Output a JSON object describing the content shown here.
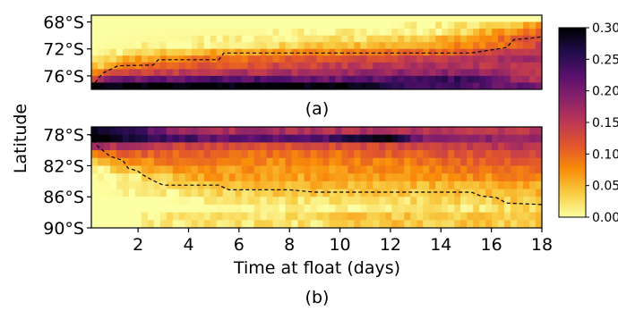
{
  "figure": {
    "ylabel": "Latitude",
    "xlabel": "Time at float (days)",
    "panel_a_label": "(a)",
    "panel_b_label": "(b)"
  },
  "colormap": {
    "name": "inferno_r",
    "stops": [
      "#fcffa4",
      "#f8cd44",
      "#f98e09",
      "#e3572b",
      "#bc3754",
      "#89226a",
      "#57106e",
      "#1f0c48",
      "#000004"
    ]
  },
  "chart_data": [
    {
      "type": "heatmap",
      "panel": "(a)",
      "x": {
        "ticks": [],
        "range": [
          0,
          18
        ]
      },
      "y": {
        "ticks": [
          "68°S",
          "72°S",
          "76°S"
        ],
        "range_degS": [
          67,
          78
        ]
      },
      "colorbar": {
        "range": [
          0.0,
          0.3
        ],
        "ticks": [
          "0.00",
          "0.05",
          "0.10",
          "0.15",
          "0.20",
          "0.25",
          "0.30"
        ]
      },
      "rows": [
        {
          "lat_degS": 67.5,
          "profile": [
            [
              0,
              0.0
            ],
            [
              18,
              0.0
            ]
          ]
        },
        {
          "lat_degS": 68.5,
          "profile": [
            [
              0,
              0.0
            ],
            [
              12,
              0.0
            ],
            [
              16,
              0.03
            ],
            [
              18,
              0.07
            ]
          ]
        },
        {
          "lat_degS": 69.5,
          "profile": [
            [
              0,
              0.0
            ],
            [
              14,
              0.01
            ],
            [
              16,
              0.06
            ],
            [
              18,
              0.1
            ]
          ]
        },
        {
          "lat_degS": 70.5,
          "profile": [
            [
              0,
              0.0
            ],
            [
              8,
              0.01
            ],
            [
              12,
              0.03
            ],
            [
              15,
              0.06
            ],
            [
              18,
              0.13
            ]
          ]
        },
        {
          "lat_degS": 71.5,
          "profile": [
            [
              0,
              0.0
            ],
            [
              4,
              0.01
            ],
            [
              8,
              0.03
            ],
            [
              12,
              0.05
            ],
            [
              16,
              0.09
            ],
            [
              18,
              0.14
            ]
          ]
        },
        {
          "lat_degS": 72.5,
          "profile": [
            [
              0,
              0.0
            ],
            [
              2,
              0.02
            ],
            [
              5,
              0.06
            ],
            [
              10,
              0.08
            ],
            [
              14,
              0.1
            ],
            [
              18,
              0.16
            ]
          ]
        },
        {
          "lat_degS": 73.5,
          "profile": [
            [
              0,
              0.01
            ],
            [
              1,
              0.04
            ],
            [
              3,
              0.08
            ],
            [
              8,
              0.11
            ],
            [
              13,
              0.14
            ],
            [
              18,
              0.17
            ]
          ]
        },
        {
          "lat_degS": 74.5,
          "profile": [
            [
              0,
              0.02
            ],
            [
              1,
              0.07
            ],
            [
              3,
              0.11
            ],
            [
              8,
              0.13
            ],
            [
              13,
              0.16
            ],
            [
              18,
              0.15
            ]
          ]
        },
        {
          "lat_degS": 75.5,
          "profile": [
            [
              0,
              0.05
            ],
            [
              1,
              0.12
            ],
            [
              4,
              0.15
            ],
            [
              10,
              0.17
            ],
            [
              15,
              0.19
            ],
            [
              18,
              0.14
            ]
          ]
        },
        {
          "lat_degS": 76.5,
          "profile": [
            [
              0,
              0.12
            ],
            [
              1,
              0.2
            ],
            [
              5,
              0.23
            ],
            [
              10,
              0.21
            ],
            [
              15,
              0.25
            ],
            [
              18,
              0.14
            ]
          ]
        },
        {
          "lat_degS": 77.5,
          "profile": [
            [
              0,
              0.3
            ],
            [
              10,
              0.3
            ],
            [
              11,
              0.27
            ],
            [
              14,
              0.24
            ],
            [
              18,
              0.2
            ]
          ]
        }
      ],
      "dashed_line": {
        "days": [
          0.3,
          0.6,
          1.2,
          2.6,
          2.8,
          5.2,
          5.4,
          9.0,
          15.2,
          16.6,
          16.9,
          17.6,
          18.0
        ],
        "lat_degS": [
          77.0,
          75.6,
          74.5,
          74.4,
          73.6,
          73.6,
          72.6,
          72.6,
          72.6,
          71.8,
          70.6,
          70.4,
          70.2
        ]
      }
    },
    {
      "type": "heatmap",
      "panel": "(b)",
      "x": {
        "ticks": [
          "2",
          "4",
          "6",
          "8",
          "10",
          "12",
          "14",
          "16",
          "18"
        ],
        "range": [
          0,
          18
        ]
      },
      "y": {
        "ticks": [
          "78°S",
          "82°S",
          "86°S",
          "90°S"
        ],
        "range_degS": [
          77,
          90
        ]
      },
      "colorbar": {
        "range": [
          0.0,
          0.3
        ],
        "ticks": [
          "0.00",
          "0.05",
          "0.10",
          "0.15",
          "0.20",
          "0.25",
          "0.30"
        ]
      },
      "rows": [
        {
          "lat_degS": 77.5,
          "profile": [
            [
              0,
              0.3
            ],
            [
              1,
              0.27
            ],
            [
              4,
              0.17
            ],
            [
              10,
              0.16
            ],
            [
              18,
              0.15
            ]
          ]
        },
        {
          "lat_degS": 78.5,
          "profile": [
            [
              0,
              0.3
            ],
            [
              1,
              0.3
            ],
            [
              2,
              0.26
            ],
            [
              5,
              0.22
            ],
            [
              9,
              0.22
            ],
            [
              12,
              0.3
            ],
            [
              13,
              0.2
            ],
            [
              18,
              0.17
            ]
          ]
        },
        {
          "lat_degS": 79.5,
          "profile": [
            [
              0,
              0.18
            ],
            [
              1,
              0.16
            ],
            [
              3,
              0.14
            ],
            [
              8,
              0.12
            ],
            [
              13,
              0.13
            ],
            [
              18,
              0.16
            ]
          ]
        },
        {
          "lat_degS": 80.5,
          "profile": [
            [
              0,
              0.06
            ],
            [
              1,
              0.1
            ],
            [
              3,
              0.11
            ],
            [
              8,
              0.09
            ],
            [
              13,
              0.11
            ],
            [
              18,
              0.14
            ]
          ]
        },
        {
          "lat_degS": 81.5,
          "profile": [
            [
              0,
              0.02
            ],
            [
              1,
              0.06
            ],
            [
              3,
              0.09
            ],
            [
              8,
              0.08
            ],
            [
              13,
              0.09
            ],
            [
              18,
              0.12
            ]
          ]
        },
        {
          "lat_degS": 82.5,
          "profile": [
            [
              0,
              0.0
            ],
            [
              1,
              0.03
            ],
            [
              3,
              0.07
            ],
            [
              8,
              0.07
            ],
            [
              13,
              0.08
            ],
            [
              18,
              0.1
            ]
          ]
        },
        {
          "lat_degS": 83.5,
          "profile": [
            [
              0,
              0.0
            ],
            [
              2,
              0.02
            ],
            [
              4,
              0.06
            ],
            [
              8,
              0.06
            ],
            [
              13,
              0.07
            ],
            [
              18,
              0.08
            ]
          ]
        },
        {
          "lat_degS": 84.5,
          "profile": [
            [
              0,
              0.0
            ],
            [
              2,
              0.01
            ],
            [
              4,
              0.04
            ],
            [
              8,
              0.05
            ],
            [
              13,
              0.05
            ],
            [
              18,
              0.06
            ]
          ]
        },
        {
          "lat_degS": 85.5,
          "profile": [
            [
              0,
              0.0
            ],
            [
              3,
              0.01
            ],
            [
              5,
              0.03
            ],
            [
              9,
              0.04
            ],
            [
              14,
              0.04
            ],
            [
              18,
              0.05
            ]
          ]
        },
        {
          "lat_degS": 86.5,
          "profile": [
            [
              0,
              0.0
            ],
            [
              3,
              0.0
            ],
            [
              6,
              0.02
            ],
            [
              10,
              0.02
            ],
            [
              15,
              0.03
            ],
            [
              18,
              0.04
            ]
          ]
        },
        {
          "lat_degS": 87.5,
          "profile": [
            [
              0,
              0.0
            ],
            [
              4,
              0.0
            ],
            [
              8,
              0.01
            ],
            [
              12,
              0.01
            ],
            [
              16,
              0.02
            ],
            [
              18,
              0.03
            ]
          ]
        },
        {
          "lat_degS": 88.5,
          "profile": [
            [
              0,
              0.0
            ],
            [
              2,
              0.0
            ],
            [
              3,
              0.02
            ],
            [
              9,
              0.02
            ],
            [
              10,
              0.04
            ],
            [
              18,
              0.04
            ]
          ]
        },
        {
          "lat_degS": 89.5,
          "profile": [
            [
              0,
              0.0
            ],
            [
              2,
              0.0
            ],
            [
              3,
              0.02
            ],
            [
              9,
              0.02
            ],
            [
              10,
              0.04
            ],
            [
              18,
              0.04
            ]
          ]
        }
      ],
      "dashed_line": {
        "days": [
          0.1,
          0.4,
          0.9,
          1.4,
          1.6,
          2.0,
          2.2,
          2.6,
          3.0,
          5.2,
          5.6,
          8.0,
          9.0,
          15.2,
          15.6,
          16.2,
          16.6,
          18.0
        ],
        "lat_degS": [
          78.0,
          79.5,
          80.8,
          81.3,
          82.3,
          82.7,
          83.2,
          83.9,
          84.5,
          84.5,
          85.1,
          85.1,
          85.4,
          85.4,
          85.9,
          86.1,
          86.8,
          87.0
        ]
      }
    }
  ]
}
